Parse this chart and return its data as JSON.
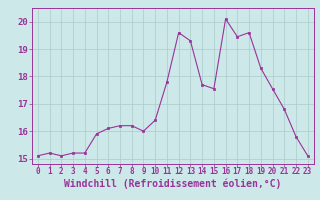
{
  "x": [
    0,
    1,
    2,
    3,
    4,
    5,
    6,
    7,
    8,
    9,
    10,
    11,
    12,
    13,
    14,
    15,
    16,
    17,
    18,
    19,
    20,
    21,
    22,
    23
  ],
  "y": [
    15.1,
    15.2,
    15.1,
    15.2,
    15.2,
    15.9,
    16.1,
    16.2,
    16.2,
    16.0,
    16.4,
    17.8,
    19.6,
    19.3,
    17.7,
    17.55,
    20.1,
    19.45,
    19.6,
    18.3,
    17.55,
    16.8,
    15.8,
    15.1
  ],
  "line_color": "#993399",
  "marker": "s",
  "markersize": 2,
  "linewidth": 0.8,
  "xlabel": "Windchill (Refroidissement éolien,°C)",
  "xlabel_fontsize": 7,
  "ylim": [
    14.8,
    20.5
  ],
  "xlim": [
    -0.5,
    23.5
  ],
  "yticks": [
    15,
    16,
    17,
    18,
    19,
    20
  ],
  "xticks": [
    0,
    1,
    2,
    3,
    4,
    5,
    6,
    7,
    8,
    9,
    10,
    11,
    12,
    13,
    14,
    15,
    16,
    17,
    18,
    19,
    20,
    21,
    22,
    23
  ],
  "xtick_fontsize": 5.5,
  "ytick_fontsize": 6.5,
  "bg_color": "#cce8e8",
  "grid_color": "#aacccc",
  "spine_color": "#993399"
}
